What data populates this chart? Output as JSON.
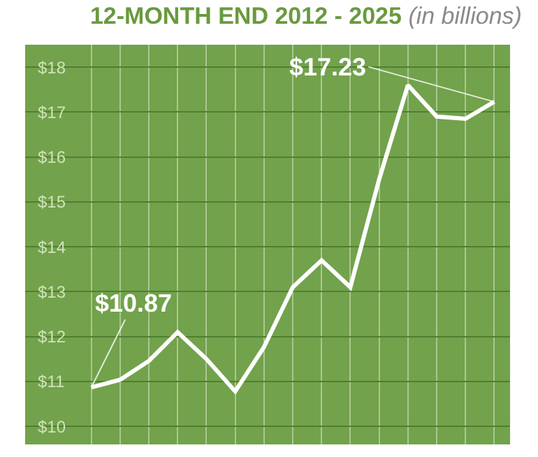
{
  "chart_data": {
    "type": "line",
    "title": "12-MONTH END 2012 - 2025",
    "subtitle": "(in billions)",
    "categories": [
      null,
      null,
      null,
      null,
      null,
      null,
      null,
      null,
      null,
      null,
      null,
      null,
      null,
      null,
      null
    ],
    "series": [
      {
        "color": "#ffffff",
        "values": [
          10.87,
          11.04,
          11.46,
          12.1,
          11.5,
          10.78,
          11.77,
          13.1,
          13.7,
          13.1,
          15.5,
          17.6,
          16.9,
          16.85,
          17.23
        ]
      }
    ],
    "ylim": [
      9.6,
      18.5
    ],
    "yticks": [
      {
        "value": 10,
        "label": "$10"
      },
      {
        "value": 11,
        "label": "$11"
      },
      {
        "value": 12,
        "label": "$12"
      },
      {
        "value": 13,
        "label": "$13"
      },
      {
        "value": 14,
        "label": "$14"
      },
      {
        "value": 15,
        "label": "$15"
      },
      {
        "value": 16,
        "label": "$16"
      },
      {
        "value": 17,
        "label": "$17"
      },
      {
        "value": 18,
        "label": "$18"
      }
    ],
    "annotations": [
      "$10.87",
      "$17.23"
    ],
    "grid": true,
    "marker": "none",
    "line_style": "solid"
  }
}
